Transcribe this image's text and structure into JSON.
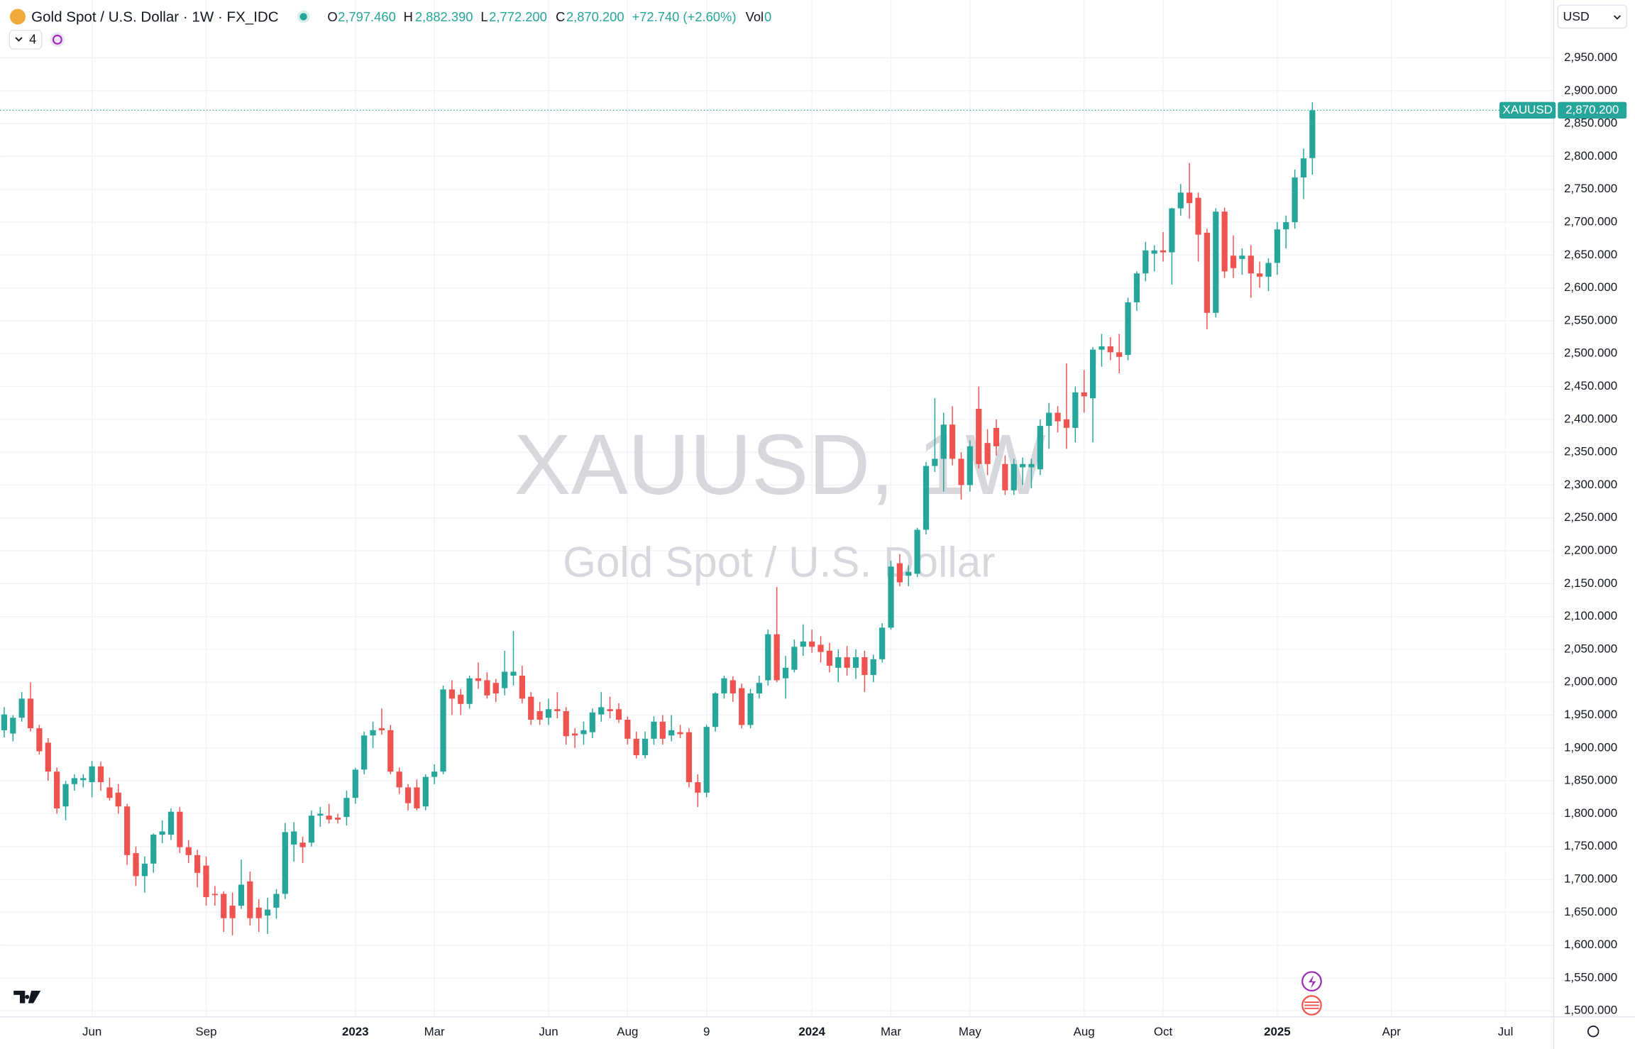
{
  "header": {
    "title": "Gold Spot / U.S. Dollar · 1W · FX_IDC",
    "o": "O",
    "open": "2,797.460",
    "h": "H",
    "high": "2,882.390",
    "l": "L",
    "low": "2,772.200",
    "c": "C",
    "close": "2,870.200",
    "change": "+72.740 (+2.60%)",
    "vol": "Vol",
    "vol_value": "0",
    "indicators": "4",
    "currency": "USD"
  },
  "chart_data": {
    "type": "candlestick",
    "symbol": "XAUUSD",
    "last_price_label": "2,870.200",
    "watermark": {
      "line1": "XAUUSD, 1W",
      "line2": "Gold Spot / U.S. Dollar"
    },
    "up_color": "#26a69a",
    "down_color": "#ef5350",
    "grid": true,
    "open": [
      1927,
      1922,
      1946,
      1975,
      1930,
      1908,
      1864,
      1811,
      1845,
      1851,
      1848,
      1872,
      1840,
      1832,
      1811,
      1740,
      1705,
      1724,
      1768,
      1768,
      1803,
      1749,
      1737,
      1721,
      1678,
      1678,
      1660,
      1660,
      1697,
      1657,
      1645,
      1657,
      1678,
      1753,
      1756,
      1756,
      1797,
      1797,
      1794,
      1795,
      1824,
      1867,
      1919,
      1930,
      1927,
      1864,
      1840,
      1840,
      1811,
      1856,
      1864,
      1989,
      1981,
      1967,
      2006,
      2003,
      1999,
      1991,
      2010,
      2010,
      1978,
      1956,
      1946,
      1959,
      1956,
      1922,
      1921,
      1924,
      1951,
      1959,
      1959,
      1943,
      1914,
      1889,
      1914,
      1940,
      1919,
      1924,
      1924,
      1848,
      1832,
      1932,
      1983,
      2003,
      1991,
      1935,
      1983,
      2003,
      2073,
      2006,
      2019,
      2054,
      2062,
      2057,
      2048,
      2022,
      2038,
      2022,
      2038,
      2011,
      2035,
      2083,
      2181,
      2162,
      2165,
      2232,
      2329,
      2340,
      2392,
      2340,
      2300,
      2416,
      2364,
      2387,
      2332,
      2292,
      2327,
      2327,
      2324,
      2390,
      2410,
      2400,
      2387,
      2441,
      2432,
      2506,
      2511,
      2502,
      2498,
      2578,
      2622,
      2652,
      2657,
      2654,
      2721,
      2745,
      2737,
      2684,
      2562,
      2716,
      2649,
      2644,
      2649,
      2622,
      2617,
      2638,
      2689,
      2700,
      2768,
      2797.46
    ],
    "high": [
      1962,
      1950,
      1985,
      2000,
      1935,
      1915,
      1870,
      1850,
      1860,
      1860,
      1880,
      1879,
      1855,
      1845,
      1815,
      1750,
      1735,
      1770,
      1790,
      1808,
      1810,
      1760,
      1745,
      1735,
      1690,
      1682,
      1680,
      1730,
      1712,
      1670,
      1672,
      1685,
      1786,
      1787,
      1765,
      1805,
      1810,
      1815,
      1800,
      1835,
      1870,
      1925,
      1940,
      1960,
      1935,
      1870,
      1845,
      1852,
      1860,
      1875,
      1995,
      2003,
      1990,
      2010,
      2030,
      2015,
      2005,
      2048,
      2078,
      2025,
      1985,
      1970,
      1975,
      1985,
      1962,
      1930,
      1940,
      1960,
      1985,
      1978,
      1968,
      1948,
      1925,
      1925,
      1948,
      1950,
      1950,
      1935,
      1930,
      1860,
      1935,
      1985,
      2010,
      2009,
      1998,
      1990,
      2010,
      2080,
      2145,
      2040,
      2065,
      2088,
      2080,
      2070,
      2060,
      2050,
      2055,
      2050,
      2048,
      2042,
      2090,
      2185,
      2195,
      2178,
      2235,
      2335,
      2432,
      2410,
      2420,
      2350,
      2368,
      2450,
      2385,
      2400,
      2345,
      2340,
      2342,
      2340,
      2400,
      2425,
      2420,
      2485,
      2450,
      2475,
      2510,
      2530,
      2525,
      2530,
      2585,
      2625,
      2670,
      2665,
      2685,
      2722,
      2758,
      2790,
      2745,
      2690,
      2721,
      2722,
      2680,
      2660,
      2665,
      2640,
      2645,
      2700,
      2710,
      2780,
      2812,
      2882.39
    ],
    "low": [
      1916,
      1910,
      1940,
      1925,
      1890,
      1850,
      1800,
      1790,
      1835,
      1840,
      1825,
      1835,
      1820,
      1800,
      1722,
      1690,
      1680,
      1710,
      1755,
      1760,
      1740,
      1725,
      1688,
      1660,
      1660,
      1620,
      1615,
      1655,
      1630,
      1620,
      1617,
      1640,
      1670,
      1727,
      1725,
      1750,
      1780,
      1785,
      1785,
      1782,
      1815,
      1860,
      1900,
      1920,
      1860,
      1830,
      1805,
      1805,
      1805,
      1845,
      1860,
      1950,
      1950,
      1960,
      1990,
      1975,
      1970,
      1980,
      1995,
      1968,
      1935,
      1935,
      1935,
      1945,
      1905,
      1900,
      1905,
      1915,
      1940,
      1945,
      1938,
      1905,
      1884,
      1884,
      1905,
      1905,
      1910,
      1915,
      1840,
      1810,
      1825,
      1925,
      1975,
      1970,
      1930,
      1930,
      1975,
      1995,
      2000,
      1975,
      2015,
      2040,
      2045,
      2030,
      2015,
      2000,
      2010,
      2005,
      1985,
      2000,
      2030,
      2080,
      2146,
      2146,
      2160,
      2225,
      2320,
      2290,
      2330,
      2278,
      2290,
      2325,
      2315,
      2345,
      2285,
      2285,
      2300,
      2295,
      2315,
      2355,
      2380,
      2355,
      2365,
      2410,
      2365,
      2480,
      2490,
      2470,
      2490,
      2565,
      2610,
      2625,
      2640,
      2605,
      2710,
      2705,
      2640,
      2537,
      2555,
      2615,
      2615,
      2620,
      2585,
      2600,
      2595,
      2620,
      2660,
      2690,
      2735,
      2772.2
    ],
    "close": [
      1951,
      1946,
      1975,
      1930,
      1895,
      1864,
      1808,
      1845,
      1854,
      1854,
      1872,
      1848,
      1824,
      1811,
      1737,
      1705,
      1724,
      1768,
      1773,
      1803,
      1749,
      1737,
      1710,
      1673,
      1676,
      1641,
      1641,
      1692,
      1641,
      1641,
      1654,
      1678,
      1772,
      1773,
      1749,
      1797,
      1800,
      1791,
      1791,
      1824,
      1867,
      1919,
      1927,
      1927,
      1864,
      1840,
      1816,
      1808,
      1856,
      1864,
      1989,
      1975,
      1967,
      2006,
      2002,
      1980,
      1983,
      2016,
      2016,
      1975,
      1943,
      1943,
      1959,
      1956,
      1918,
      1919,
      1927,
      1954,
      1962,
      1956,
      1943,
      1914,
      1889,
      1914,
      1940,
      1914,
      1927,
      1921,
      1848,
      1832,
      1932,
      1983,
      2006,
      1983,
      1935,
      1983,
      1999,
      2073,
      2003,
      2022,
      2054,
      2062,
      2054,
      2046,
      2025,
      2038,
      2022,
      2038,
      2011,
      2035,
      2083,
      2176,
      2152,
      2168,
      2232,
      2329,
      2340,
      2392,
      2340,
      2300,
      2359,
      2332,
      2332,
      2359,
      2292,
      2332,
      2332,
      2332,
      2390,
      2410,
      2397,
      2387,
      2441,
      2435,
      2506,
      2511,
      2502,
      2495,
      2578,
      2622,
      2657,
      2657,
      2654,
      2721,
      2745,
      2729,
      2681,
      2562,
      2716,
      2625,
      2630,
      2649,
      2622,
      2617,
      2638,
      2689,
      2700,
      2768,
      2797,
      2870.2
    ],
    "xlim": [
      -0.475,
      176.48
    ],
    "xticks": [
      {
        "value": 10,
        "label": "Jun"
      },
      {
        "value": 23,
        "label": "Sep"
      },
      {
        "value": 40,
        "label": "2023"
      },
      {
        "value": 49,
        "label": "Mar"
      },
      {
        "value": 62,
        "label": "Jun"
      },
      {
        "value": 71,
        "label": "Aug"
      },
      {
        "value": 80,
        "label": "9"
      },
      {
        "value": 92,
        "label": "2024"
      },
      {
        "value": 101,
        "label": "Mar"
      },
      {
        "value": 110,
        "label": "May"
      },
      {
        "value": 123,
        "label": "Aug"
      },
      {
        "value": 132,
        "label": "Oct"
      },
      {
        "value": 145,
        "label": "2025"
      },
      {
        "value": 158,
        "label": "Apr"
      },
      {
        "value": 171,
        "label": "Jul"
      }
    ],
    "ylim": [
      1491,
      3038
    ],
    "yticks": [
      {
        "value": 1500,
        "label": "1,500.000"
      },
      {
        "value": 1550,
        "label": "1,550.000"
      },
      {
        "value": 1600,
        "label": "1,600.000"
      },
      {
        "value": 1650,
        "label": "1,650.000"
      },
      {
        "value": 1700,
        "label": "1,700.000"
      },
      {
        "value": 1750,
        "label": "1,750.000"
      },
      {
        "value": 1800,
        "label": "1,800.000"
      },
      {
        "value": 1850,
        "label": "1,850.000"
      },
      {
        "value": 1900,
        "label": "1,900.000"
      },
      {
        "value": 1950,
        "label": "1,950.000"
      },
      {
        "value": 2000,
        "label": "2,000.000"
      },
      {
        "value": 2050,
        "label": "2,050.000"
      },
      {
        "value": 2100,
        "label": "2,100.000"
      },
      {
        "value": 2150,
        "label": "2,150.000"
      },
      {
        "value": 2200,
        "label": "2,200.000"
      },
      {
        "value": 2250,
        "label": "2,250.000"
      },
      {
        "value": 2300,
        "label": "2,300.000"
      },
      {
        "value": 2350,
        "label": "2,350.000"
      },
      {
        "value": 2400,
        "label": "2,400.000"
      },
      {
        "value": 2450,
        "label": "2,450.000"
      },
      {
        "value": 2500,
        "label": "2,500.000"
      },
      {
        "value": 2550,
        "label": "2,550.000"
      },
      {
        "value": 2600,
        "label": "2,600.000"
      },
      {
        "value": 2650,
        "label": "2,650.000"
      },
      {
        "value": 2700,
        "label": "2,700.000"
      },
      {
        "value": 2750,
        "label": "2,750.000"
      },
      {
        "value": 2800,
        "label": "2,800.000"
      },
      {
        "value": 2850,
        "label": "2,850.000"
      },
      {
        "value": 2900,
        "label": "2,900.000"
      },
      {
        "value": 2950,
        "label": "2,950.000"
      }
    ]
  }
}
